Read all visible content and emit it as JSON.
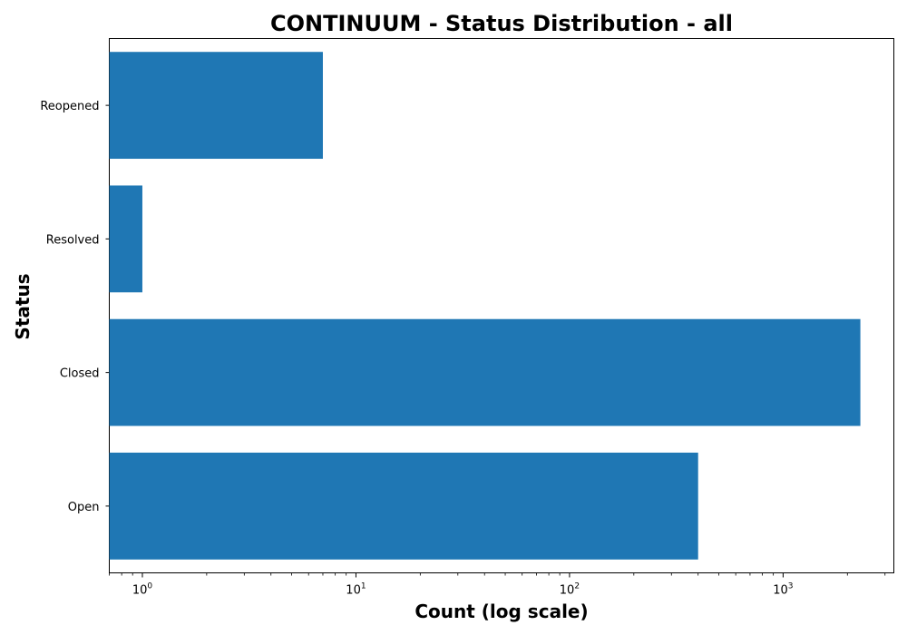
{
  "chart_data": {
    "type": "bar",
    "orientation": "horizontal",
    "title": "CONTINUUM - Status Distribution - all",
    "xlabel": "Count (log scale)",
    "ylabel": "Status",
    "x_scale": "log",
    "xlim": [
      0.7,
      3300
    ],
    "x_ticks": [
      {
        "base": "10",
        "exp": "0",
        "value": 1
      },
      {
        "base": "10",
        "exp": "1",
        "value": 10
      },
      {
        "base": "10",
        "exp": "2",
        "value": 100
      },
      {
        "base": "10",
        "exp": "3",
        "value": 1000
      }
    ],
    "categories": [
      "Open",
      "Closed",
      "Resolved",
      "Reopened"
    ],
    "values": [
      400,
      2300,
      1,
      7
    ],
    "bar_color": "#1f77b4",
    "grid": false,
    "legend": "none"
  }
}
